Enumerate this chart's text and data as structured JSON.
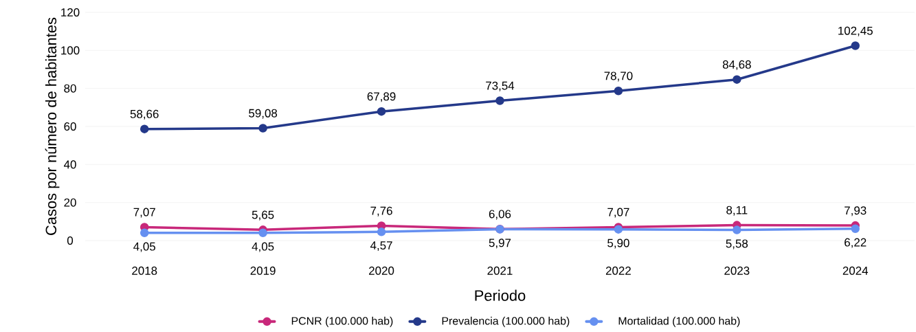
{
  "chart_data": {
    "type": "line",
    "xlabel": "Periodo",
    "ylabel": "Casos por número de habitantes",
    "categories": [
      "2018",
      "2019",
      "2020",
      "2021",
      "2022",
      "2023",
      "2024"
    ],
    "series": [
      {
        "name": "PCNR (100.000 hab)",
        "color": "#c8287a",
        "values": [
          7.07,
          5.65,
          7.76,
          6.06,
          7.07,
          8.11,
          7.93
        ],
        "value_labels": [
          "7,07",
          "5,65",
          "7,76",
          "6,06",
          "7,07",
          "8,11",
          "7,93"
        ]
      },
      {
        "name": "Prevalencia (100.000 hab)",
        "color": "#24398a",
        "values": [
          58.66,
          59.08,
          67.89,
          73.54,
          78.7,
          84.68,
          102.45
        ],
        "value_labels": [
          "58,66",
          "59,08",
          "67,89",
          "73,54",
          "78,70",
          "84,68",
          "102,45"
        ]
      },
      {
        "name": "Mortalidad (100.000 hab)",
        "color": "#6690f0",
        "values": [
          4.05,
          4.05,
          4.57,
          5.97,
          5.9,
          5.58,
          6.22
        ],
        "value_labels": [
          "4,05",
          "4,05",
          "4,57",
          "5,97",
          "5,90",
          "5,58",
          "6,22"
        ]
      }
    ],
    "ylim": [
      0,
      120
    ],
    "yticks": [
      0,
      20,
      40,
      60,
      80,
      100,
      120
    ],
    "grid": "y",
    "legend": "bottom",
    "marker": "circle",
    "line_style": "solid"
  }
}
